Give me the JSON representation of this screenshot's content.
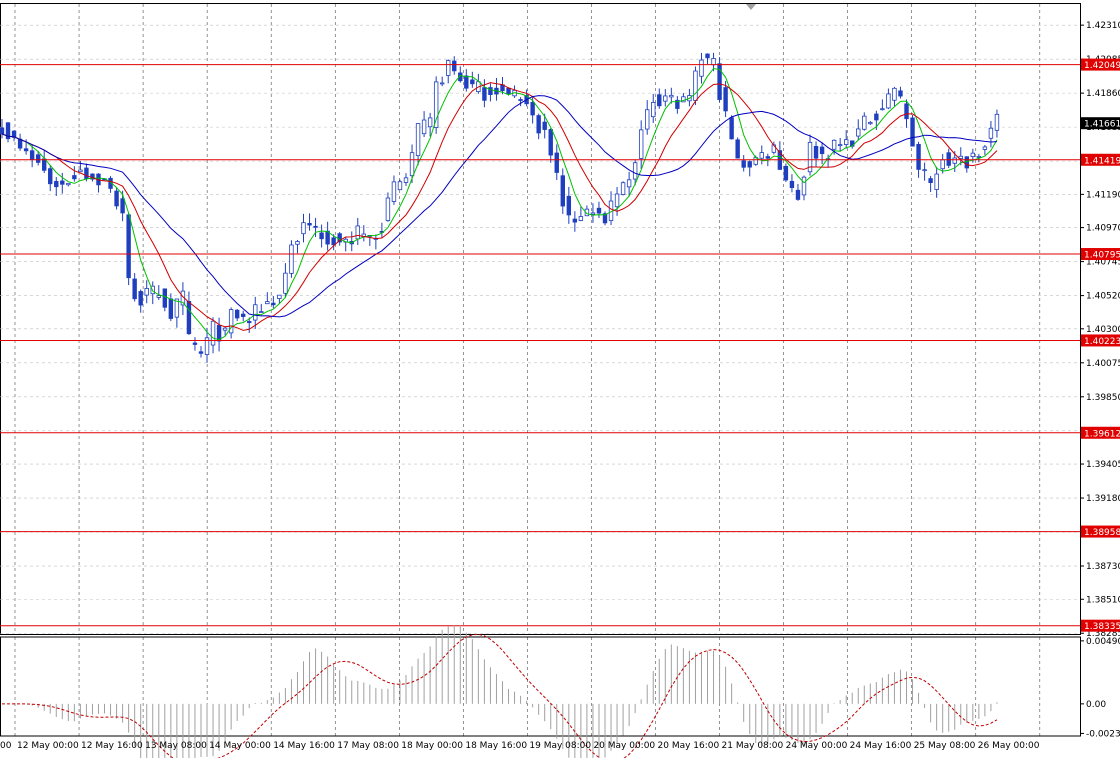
{
  "chart_data": {
    "type": "candlestick",
    "symbol": "GBPUSD",
    "timeframe": "H1",
    "colors": {
      "background": "#ffffff",
      "grid": "#c0c0c0",
      "candle": "#1f3fbf",
      "ma_fast": "#00c000",
      "ma_mid": "#d00000",
      "ma_slow": "#0000c0",
      "level_line": "#e00000",
      "level_tag": "#e00000",
      "current_tag": "#000000",
      "osc": "#c00000",
      "osc_hist": "#a0a0a0"
    },
    "price_axis": {
      "min": 1.3828,
      "max": 1.4245,
      "ticks": [
        "1.42310",
        "1.42085",
        "1.41860",
        "1.41635",
        "1.41410",
        "1.41190",
        "1.40970",
        "1.40745",
        "1.40520",
        "1.40300",
        "1.40075",
        "1.39850",
        "1.39625",
        "1.39405",
        "1.39180",
        "1.38955",
        "1.38730",
        "1.38510",
        "1.38285"
      ]
    },
    "levels": [
      {
        "label": "1.42049",
        "value": 1.42049
      },
      {
        "label": "1.41419",
        "value": 1.41419
      },
      {
        "label": "1.40795",
        "value": 1.40795
      },
      {
        "label": "1.40223",
        "value": 1.40223
      },
      {
        "label": "1.39612",
        "value": 1.39612
      },
      {
        "label": "1.38958",
        "value": 1.38958
      },
      {
        "label": "1.38335",
        "value": 1.38335
      }
    ],
    "current_price": {
      "label": "1.41661",
      "value": 1.41661
    },
    "time_labels": [
      "00",
      "12 May 00:00",
      "12 May 16:00",
      "13 May 08:00",
      "14 May 00:00",
      "14 May 16:00",
      "17 May 08:00",
      "18 May 00:00",
      "18 May 16:00",
      "19 May 08:00",
      "20 May 00:00",
      "20 May 16:00",
      "21 May 08:00",
      "24 May 00:00",
      "24 May 16:00",
      "25 May 08:00",
      "26 May 00:00"
    ],
    "osc_axis": {
      "min": -0.0025,
      "max": 0.0052,
      "ticks": [
        "0.00490",
        "0.00",
        "-0.00230"
      ]
    },
    "close_waypoints": [
      [
        0,
        1.4165
      ],
      [
        3,
        1.4148
      ],
      [
        6,
        1.414
      ],
      [
        8,
        1.4128
      ],
      [
        10,
        1.4125
      ],
      [
        13,
        1.4137
      ],
      [
        15,
        1.413
      ],
      [
        17,
        1.4127
      ],
      [
        20,
        1.4108
      ],
      [
        21,
        1.406
      ],
      [
        23,
        1.405
      ],
      [
        26,
        1.4055
      ],
      [
        28,
        1.404
      ],
      [
        30,
        1.405
      ],
      [
        31,
        1.4022
      ],
      [
        33,
        1.4013
      ],
      [
        35,
        1.403
      ],
      [
        37,
        1.4025
      ],
      [
        38,
        1.404
      ],
      [
        41,
        1.4035
      ],
      [
        43,
        1.4045
      ],
      [
        46,
        1.4052
      ],
      [
        48,
        1.4085
      ],
      [
        50,
        1.4097
      ],
      [
        52,
        1.4096
      ],
      [
        55,
        1.409
      ],
      [
        57,
        1.4086
      ],
      [
        59,
        1.4093
      ],
      [
        61,
        1.409
      ],
      [
        63,
        1.41
      ],
      [
        65,
        1.4123
      ],
      [
        67,
        1.413
      ],
      [
        69,
        1.416
      ],
      [
        71,
        1.4165
      ],
      [
        72,
        1.419
      ],
      [
        74,
        1.4205
      ],
      [
        76,
        1.4195
      ],
      [
        78,
        1.419
      ],
      [
        80,
        1.4187
      ],
      [
        82,
        1.419
      ],
      [
        84,
        1.4183
      ],
      [
        86,
        1.4186
      ],
      [
        88,
        1.417
      ],
      [
        90,
        1.416
      ],
      [
        92,
        1.413
      ],
      [
        94,
        1.41
      ],
      [
        96,
        1.4107
      ],
      [
        98,
        1.411
      ],
      [
        100,
        1.41
      ],
      [
        102,
        1.4118
      ],
      [
        104,
        1.413
      ],
      [
        106,
        1.416
      ],
      [
        108,
        1.4182
      ],
      [
        110,
        1.4185
      ],
      [
        112,
        1.4178
      ],
      [
        114,
        1.418
      ],
      [
        116,
        1.421
      ],
      [
        118,
        1.4205
      ],
      [
        120,
        1.417
      ],
      [
        122,
        1.414
      ],
      [
        124,
        1.414
      ],
      [
        126,
        1.4145
      ],
      [
        128,
        1.415
      ],
      [
        130,
        1.413
      ],
      [
        132,
        1.4118
      ],
      [
        134,
        1.415
      ],
      [
        136,
        1.4145
      ],
      [
        138,
        1.415
      ],
      [
        140,
        1.4153
      ],
      [
        142,
        1.416
      ],
      [
        144,
        1.417
      ],
      [
        146,
        1.4178
      ],
      [
        148,
        1.419
      ],
      [
        150,
        1.417
      ],
      [
        152,
        1.4135
      ],
      [
        154,
        1.4125
      ],
      [
        156,
        1.4145
      ],
      [
        158,
        1.414
      ],
      [
        160,
        1.4142
      ],
      [
        162,
        1.415
      ],
      [
        165,
        1.4166
      ]
    ]
  }
}
